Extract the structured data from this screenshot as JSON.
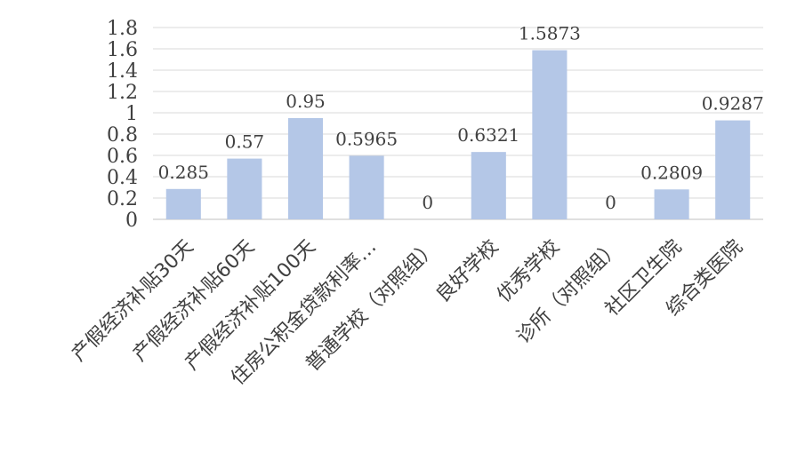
{
  "chart_data": {
    "type": "bar",
    "categories": [
      "产假经济补贴30天",
      "产假经济补贴60天",
      "产假经济补贴100天",
      "住房公积金贷款利率…",
      "普通学校（对照组）",
      "良好学校",
      "优秀学校",
      "诊所（对照组）",
      "社区卫生院",
      "综合类医院"
    ],
    "values": [
      0.285,
      0.57,
      0.95,
      0.5965,
      0,
      0.6321,
      1.5873,
      0,
      0.2809,
      0.9287
    ],
    "value_labels": [
      "0.285",
      "0.57",
      "0.95",
      "0.5965",
      "0",
      "0.6321",
      "1.5873",
      "0",
      "0.2809",
      "0.9287"
    ],
    "y_ticks": [
      0,
      0.2,
      0.4,
      0.6,
      0.8,
      1,
      1.2,
      1.4,
      1.6,
      1.8
    ],
    "y_tick_labels": [
      "0",
      "0.2",
      "0.4",
      "0.6",
      "0.8",
      "1",
      "1.2",
      "1.4",
      "1.6",
      "1.8"
    ],
    "ylim": [
      0,
      1.8
    ],
    "grid": true,
    "legend": "none",
    "title": "",
    "xlabel": "",
    "ylabel": "",
    "colors": {
      "bar": "#b4c7e7",
      "grid": "#d9d9d9",
      "text": "#404040"
    }
  }
}
